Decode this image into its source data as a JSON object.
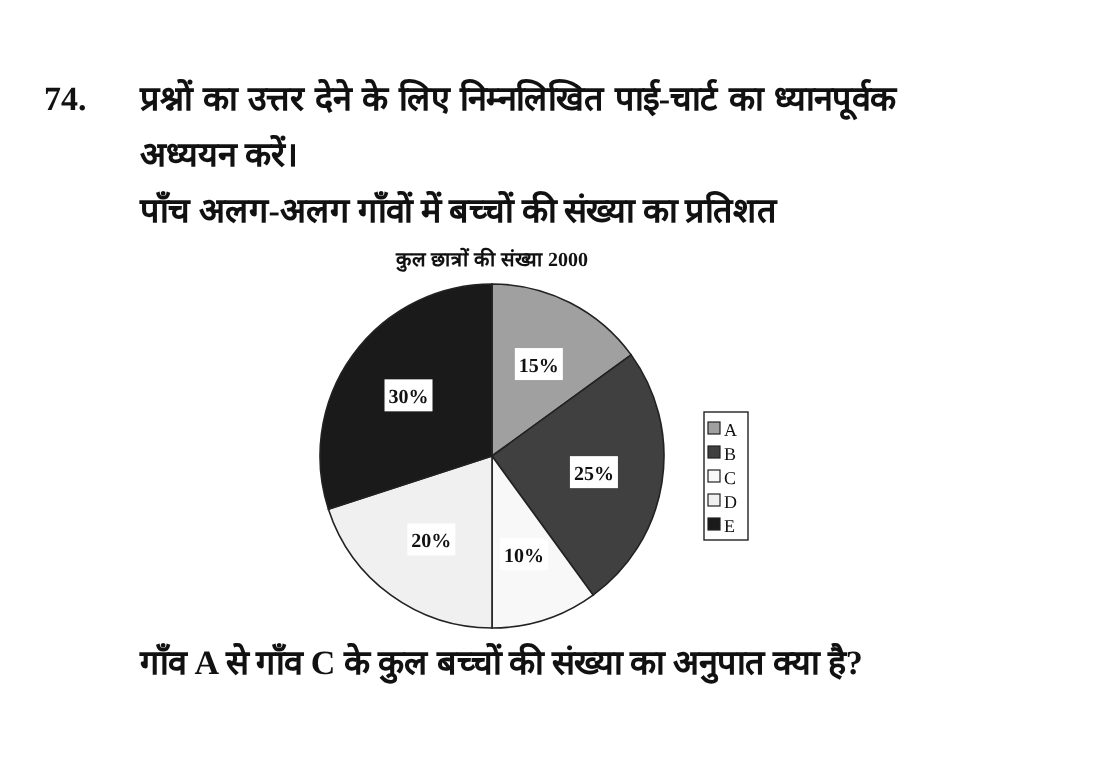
{
  "chart_data": {
    "type": "pie",
    "title": "कुल छात्रों की संख्या 2000",
    "subtitle": "पाँच अलग-अलग गाँवों में बच्चों की संख्या का प्रतिशत",
    "annotations": [
      "74.",
      "प्रश्नों का उत्तर देने के लिए निम्नलिखित पाई-चार्ट का ध्यानपूर्वक अध्ययन करें।",
      "गाँव A से गाँव C के कुल बच्चों की संख्या का अनुपात क्या है?"
    ],
    "categories": [
      "A",
      "B",
      "C",
      "D",
      "E"
    ],
    "values": [
      15,
      25,
      10,
      20,
      30
    ],
    "value_labels": [
      "15%",
      "25%",
      "10%",
      "20%",
      "30%"
    ],
    "colors": [
      "#a0a0a0",
      "#404040",
      "#f8f8f8",
      "#f0f0f0",
      "#1a1a1a"
    ],
    "legend": "right"
  }
}
